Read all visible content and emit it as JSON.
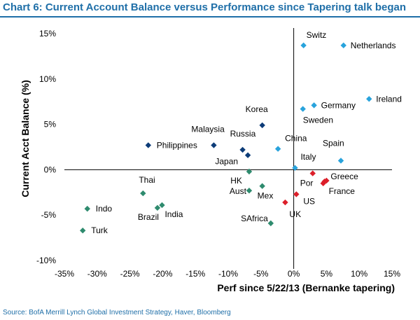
{
  "title": "Chart 6: Current Account Balance versus Performance since Tapering talk began",
  "source": "Source: BofA Merrill Lynch Global Investment Strategy, Haver, Bloomberg",
  "chart_data": {
    "type": "scatter",
    "xlabel": "Perf since 5/22/13 (Bernanke tapering)",
    "ylabel": "Current Acct Balance (%)",
    "xlim": [
      -35,
      15
    ],
    "ylim": [
      -10,
      15
    ],
    "xticks": [
      "-35%",
      "-30%",
      "-25%",
      "-20%",
      "-15%",
      "-10%",
      "-5%",
      "0%",
      "5%",
      "10%",
      "15%"
    ],
    "yticks": [
      "15%",
      "10%",
      "5%",
      "0%",
      "-5%",
      "-10%"
    ],
    "grid": false,
    "colors": {
      "asia": "#0d3c78",
      "developed": "#29a3dc",
      "emerging": "#2e8b6e",
      "periphery": "#dc1f2a",
      "axis": "#000000",
      "title": "#1f6fa8"
    },
    "points": [
      {
        "label": "Switz",
        "x": 1.5,
        "y": 13.7,
        "group": "developed"
      },
      {
        "label": "Netherlands",
        "x": 7.6,
        "y": 13.7,
        "group": "developed"
      },
      {
        "label": "Ireland",
        "x": 11.5,
        "y": 7.8,
        "group": "developed"
      },
      {
        "label": "Germany",
        "x": 3.1,
        "y": 7.1,
        "group": "developed"
      },
      {
        "label": "Sweden",
        "x": 1.4,
        "y": 6.7,
        "group": "developed"
      },
      {
        "label": "China",
        "x": -2.4,
        "y": 2.3,
        "group": "developed"
      },
      {
        "label": "Spain",
        "x": 7.2,
        "y": 1.0,
        "group": "developed"
      },
      {
        "label": "Italy",
        "x": 0.2,
        "y": 0.2,
        "group": "developed"
      },
      {
        "label": "Korea",
        "x": -4.8,
        "y": 4.9,
        "group": "asia"
      },
      {
        "label": "Malaysia",
        "x": -12.2,
        "y": 2.7,
        "group": "asia"
      },
      {
        "label": "Philippines",
        "x": -22.2,
        "y": 2.7,
        "group": "asia"
      },
      {
        "label": "Russia",
        "x": -7.8,
        "y": 2.2,
        "group": "asia"
      },
      {
        "label": "Japan",
        "x": -7.0,
        "y": 1.6,
        "group": "asia"
      },
      {
        "label": "HK",
        "x": -6.8,
        "y": -0.2,
        "group": "emerging"
      },
      {
        "label": "Aust",
        "x": -6.8,
        "y": -2.3,
        "group": "emerging"
      },
      {
        "label": "Mex",
        "x": -4.8,
        "y": -1.8,
        "group": "emerging"
      },
      {
        "label": "SAfrica",
        "x": -3.5,
        "y": -5.9,
        "group": "emerging"
      },
      {
        "label": "Thai",
        "x": -23.0,
        "y": -2.6,
        "group": "emerging"
      },
      {
        "label": "Brazil",
        "x": -20.8,
        "y": -4.2,
        "group": "emerging"
      },
      {
        "label": "India",
        "x": -20.1,
        "y": -3.9,
        "group": "emerging"
      },
      {
        "label": "Indo",
        "x": -31.5,
        "y": -4.3,
        "group": "emerging"
      },
      {
        "label": "Turk",
        "x": -32.2,
        "y": -6.7,
        "group": "emerging"
      },
      {
        "label": "Por",
        "x": 2.9,
        "y": -0.4,
        "group": "periphery"
      },
      {
        "label": "Greece",
        "x": 5.0,
        "y": -1.2,
        "group": "periphery"
      },
      {
        "label": "",
        "x": 4.5,
        "y": -1.5,
        "group": "periphery"
      },
      {
        "label": "France",
        "x": 4.7,
        "y": -1.3,
        "group": "periphery"
      },
      {
        "label": "US",
        "x": 0.4,
        "y": -2.7,
        "group": "periphery"
      },
      {
        "label": "UK",
        "x": -1.3,
        "y": -3.6,
        "group": "periphery"
      }
    ]
  }
}
